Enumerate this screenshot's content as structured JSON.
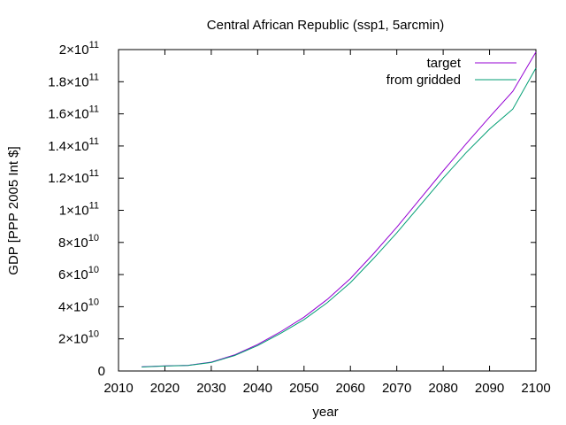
{
  "chart_data": {
    "type": "line",
    "title": "Central African Republic (ssp1, 5arcmin)",
    "xlabel": "year",
    "ylabel": "GDP [PPP 2005 Int $]",
    "xlim": [
      2010,
      2100
    ],
    "ylim": [
      0,
      200000000000
    ],
    "xticks": [
      2010,
      2020,
      2030,
      2040,
      2050,
      2060,
      2070,
      2080,
      2090,
      2100
    ],
    "yticks": [
      {
        "value": 0,
        "mantissa": "0",
        "exp": ""
      },
      {
        "value": 20000000000,
        "mantissa": "2×10",
        "exp": "10"
      },
      {
        "value": 40000000000,
        "mantissa": "4×10",
        "exp": "10"
      },
      {
        "value": 60000000000,
        "mantissa": "6×10",
        "exp": "10"
      },
      {
        "value": 80000000000,
        "mantissa": "8×10",
        "exp": "10"
      },
      {
        "value": 100000000000,
        "mantissa": "1×10",
        "exp": "11"
      },
      {
        "value": 120000000000,
        "mantissa": "1.2×10",
        "exp": "11"
      },
      {
        "value": 140000000000,
        "mantissa": "1.4×10",
        "exp": "11"
      },
      {
        "value": 160000000000,
        "mantissa": "1.6×10",
        "exp": "11"
      },
      {
        "value": 180000000000,
        "mantissa": "1.8×10",
        "exp": "11"
      },
      {
        "value": 200000000000,
        "mantissa": "2×10",
        "exp": "11"
      }
    ],
    "grid": false,
    "legend_position": "top-right",
    "x": [
      2015,
      2020,
      2025,
      2030,
      2035,
      2040,
      2045,
      2050,
      2055,
      2060,
      2065,
      2070,
      2075,
      2080,
      2085,
      2090,
      2095,
      2100
    ],
    "series": [
      {
        "name": "target",
        "color": "#9400d3",
        "values": [
          2600000000,
          3200000000,
          3500000000,
          5500000000,
          10000000000,
          16500000000,
          24500000000,
          33500000000,
          44500000000,
          57500000000,
          73000000000,
          89500000000,
          107000000000,
          124500000000,
          141500000000,
          158000000000,
          174000000000,
          198500000000
        ]
      },
      {
        "name": "from gridded",
        "color": "#009e73",
        "values": [
          2500000000,
          3100000000,
          3400000000,
          5300000000,
          9600000000,
          15800000000,
          23500000000,
          32000000000,
          42500000000,
          55000000000,
          70000000000,
          86000000000,
          103000000000,
          120000000000,
          136000000000,
          150500000000,
          163000000000,
          188500000000
        ]
      }
    ]
  }
}
